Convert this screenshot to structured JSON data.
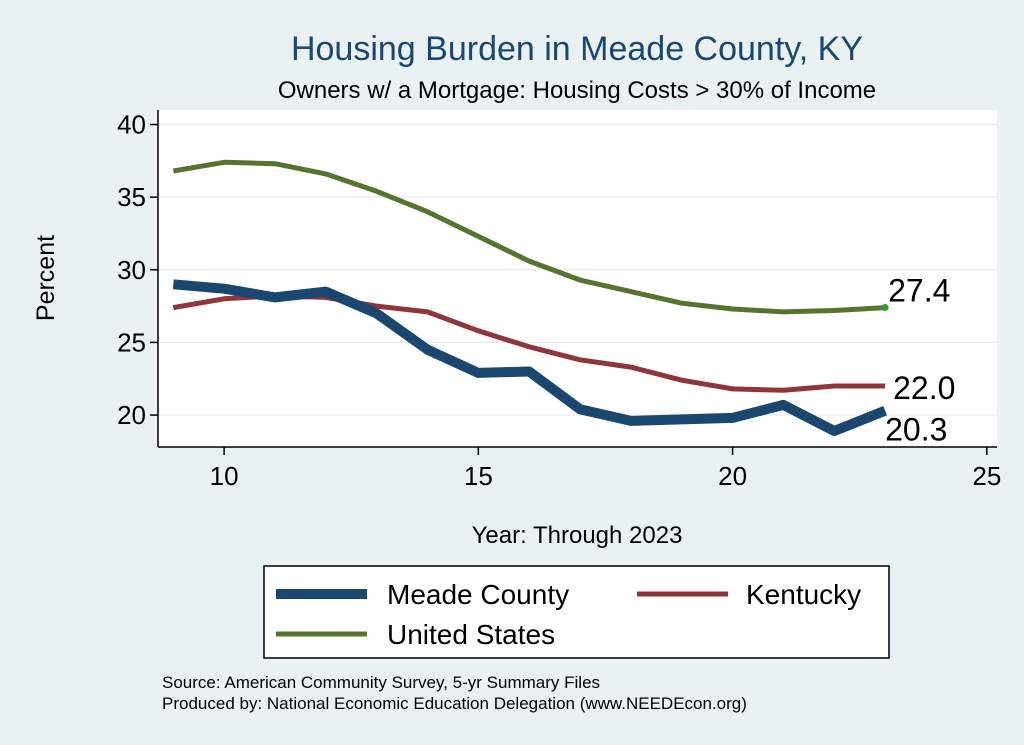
{
  "chart_data": {
    "type": "line",
    "title": "Housing Burden in Meade County, KY",
    "subtitle": "Owners w/ a Mortgage: Housing Costs > 30% of Income",
    "xlabel": "Year: Through 2023",
    "ylabel": "Percent",
    "xlim": [
      8.7,
      25.2
    ],
    "ylim": [
      17.8,
      41
    ],
    "xticks": [
      10,
      15,
      20,
      25
    ],
    "yticks": [
      20,
      25,
      30,
      35,
      40
    ],
    "grid": true,
    "legend_position": "bottom",
    "x": [
      9,
      10,
      11,
      12,
      13,
      14,
      15,
      16,
      17,
      18,
      19,
      20,
      21,
      22,
      23
    ],
    "series": [
      {
        "name": "Meade County",
        "color": "#1a476f",
        "values": [
          29.0,
          28.7,
          28.1,
          28.5,
          27.0,
          24.5,
          22.9,
          23.0,
          20.4,
          19.6,
          19.7,
          19.8,
          20.7,
          18.9,
          20.3
        ],
        "end_label": "20.3"
      },
      {
        "name": "Kentucky",
        "color": "#90353b",
        "values": [
          27.4,
          28.0,
          28.2,
          28.1,
          27.5,
          27.1,
          25.8,
          24.7,
          23.8,
          23.3,
          22.4,
          21.8,
          21.7,
          22.0,
          22.0
        ],
        "end_label": "22.0"
      },
      {
        "name": "United States",
        "color": "#55752f",
        "values": [
          36.8,
          37.4,
          37.3,
          36.6,
          35.4,
          34.0,
          32.3,
          30.6,
          29.3,
          28.5,
          27.7,
          27.3,
          27.1,
          27.2,
          27.4
        ],
        "end_label": "27.4"
      }
    ]
  },
  "source": {
    "line1": "Source: American Community Survey, 5-yr Summary Files",
    "line2": "Produced by: National Economic Education Delegation (www.NEEDEcon.org)"
  }
}
